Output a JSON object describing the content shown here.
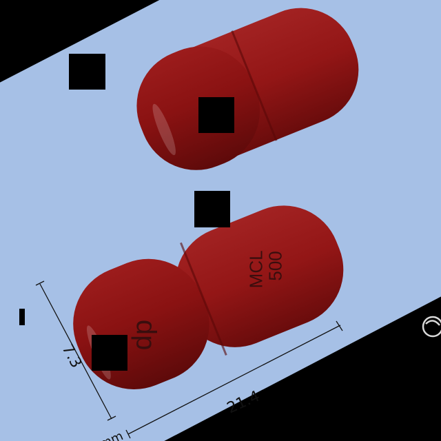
{
  "photo": {
    "background_color": "#a6c0e6",
    "capsule_color": "#8e1414",
    "capsule_shade_color": "#6e0c0c",
    "line_color": "#111111"
  },
  "capsule_imprint": {
    "line1": "MCL",
    "line2": "500",
    "logo_text": "dp"
  },
  "dimensions": {
    "length": "21.4",
    "width": "7.3",
    "unit": "mm"
  },
  "watermark": {
    "icon": "circular-logo-icon"
  }
}
